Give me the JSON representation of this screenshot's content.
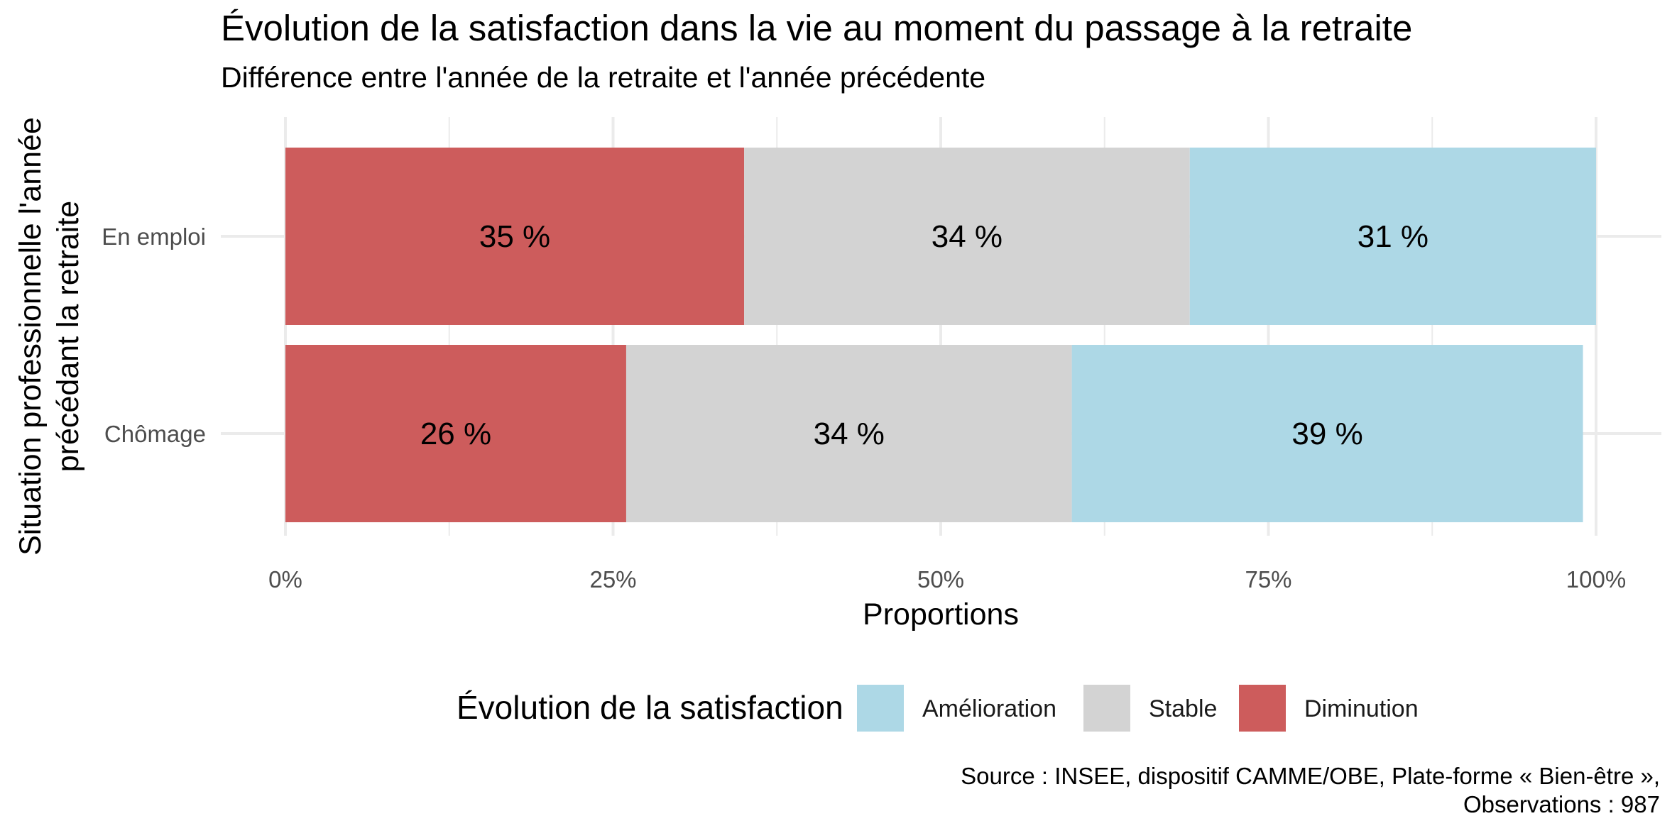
{
  "title": "Évolution de la satisfaction dans la vie au moment du passage à la retraite",
  "subtitle": "Différence entre l'année de la retraite et l'année précédente",
  "legend": {
    "title": "Évolution de la satisfaction",
    "items": [
      {
        "label": "Amélioration",
        "color": "#add8e6"
      },
      {
        "label": "Stable",
        "color": "#d3d3d3"
      },
      {
        "label": "Diminution",
        "color": "#cd5c5c"
      }
    ]
  },
  "caption": {
    "line1": "Source : INSEE, dispositif CAMME/OBE, Plate-forme « Bien-être »,",
    "line2": "Observations : 987"
  },
  "chart_data": {
    "type": "bar",
    "orientation": "horizontal",
    "stacked": true,
    "categories": [
      "En emploi",
      "Chômage"
    ],
    "series": [
      {
        "name": "Diminution",
        "color": "#cd5c5c",
        "values": [
          35,
          26
        ],
        "labels": [
          "35 %",
          "26 %"
        ]
      },
      {
        "name": "Stable",
        "color": "#d3d3d3",
        "values": [
          34,
          34
        ],
        "labels": [
          "34 %",
          "34 %"
        ]
      },
      {
        "name": "Amélioration",
        "color": "#add8e6",
        "values": [
          31,
          39
        ],
        "labels": [
          "31 %",
          "39 %"
        ]
      }
    ],
    "xlabel": "Proportions",
    "ylabel_lines": [
      "Situation professionnelle l'année",
      "précédant la retraite"
    ],
    "xlim": [
      0,
      100
    ],
    "x_ticks": [
      "0%",
      "25%",
      "50%",
      "75%",
      "100%"
    ],
    "grid": true,
    "legend_position": "bottom"
  }
}
